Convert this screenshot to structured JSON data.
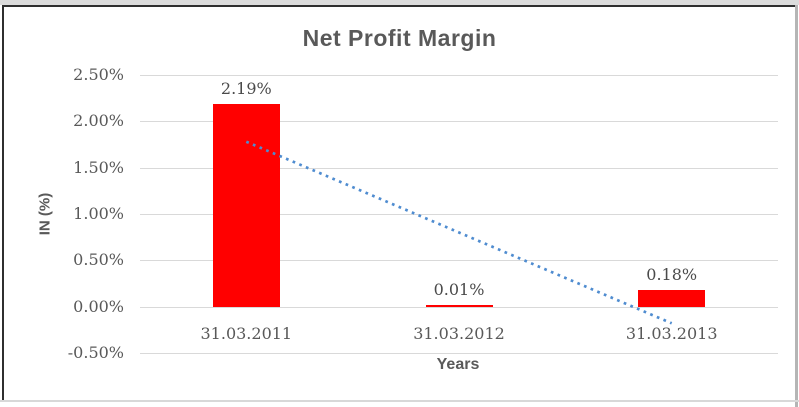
{
  "chart_data": {
    "type": "bar",
    "title": "Net Profit Margin",
    "xlabel": "Years",
    "ylabel": "IN (%)",
    "categories": [
      "31.03.2011",
      "31.03.2012",
      "31.03.2013"
    ],
    "values": [
      2.19,
      0.01,
      0.18
    ],
    "data_labels": [
      "2.19%",
      "0.01%",
      "0.18%"
    ],
    "y_ticks": [
      "2.50%",
      "2.00%",
      "1.50%",
      "1.00%",
      "0.50%",
      "0.00%",
      "-0.50%"
    ],
    "y_tick_values": [
      2.5,
      2.0,
      1.5,
      1.0,
      0.5,
      0.0,
      -0.5
    ],
    "ylim": [
      -0.5,
      2.5
    ],
    "grid": true,
    "legend": "none",
    "bar_color": "#ff0000",
    "gridline_color": "#d9d9d9",
    "title_color": "#595959",
    "axis_title_color": "#595959",
    "tick_label_color": "#595959",
    "data_label_color": "#4a4a4a",
    "trendline": {
      "type": "linear",
      "style": "dotted",
      "color": "#4f8cd0",
      "start_value": 1.78,
      "end_value": -0.18
    }
  }
}
